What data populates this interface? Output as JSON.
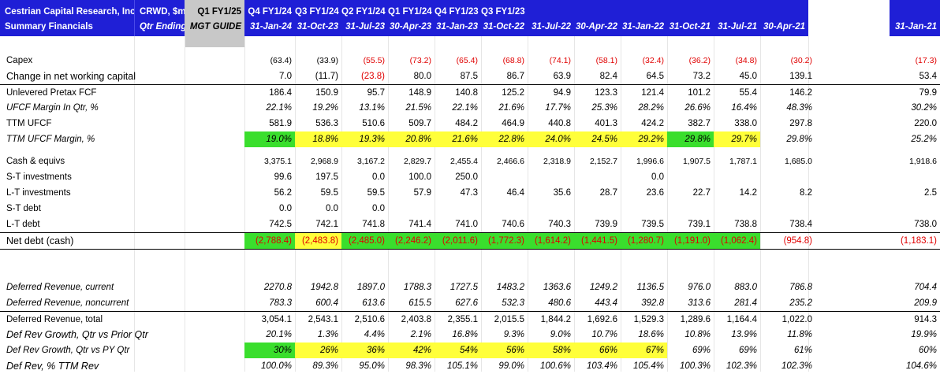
{
  "header": {
    "title_line1": "Cestrian Capital Research, Inc",
    "title_line2": "Summary Financials",
    "ticker_line1": "CRWD, $m",
    "ticker_line2": "Qtr Ending",
    "guide_line1": "Q1 FY1/25",
    "guide_line2": "MGT GUIDE",
    "periods": [
      {
        "q": "Q4 FY1/24",
        "d": "31-Jan-24"
      },
      {
        "q": "Q3 FY1/24",
        "d": "31-Oct-23"
      },
      {
        "q": "Q2 FY1/24",
        "d": "31-Jul-23"
      },
      {
        "q": "Q1 FY1/24",
        "d": "30-Apr-23"
      },
      {
        "q": "Q4 FY1/23",
        "d": "31-Jan-23"
      },
      {
        "q": "Q3 FY1/23",
        "d": "31-Oct-22"
      },
      {
        "q": "",
        "d": "31-Jul-22"
      },
      {
        "q": "",
        "d": "30-Apr-22"
      },
      {
        "q": "",
        "d": "31-Jan-22"
      },
      {
        "q": "",
        "d": "31-Oct-21"
      },
      {
        "q": "",
        "d": "31-Jul-21"
      },
      {
        "q": "",
        "d": "30-Apr-21"
      },
      {
        "q": "",
        "d": "31-Jan-21"
      }
    ]
  },
  "colors": {
    "header_bg": "#1f1fd6",
    "guide_bg": "#c8c8c8",
    "negative": "#e00000",
    "highlight_green": "#3ade2d",
    "highlight_yellow": "#ffff3a"
  },
  "rows": [
    {
      "key": "capex",
      "label": "Capex",
      "values": [
        "(63.4)",
        "(33.9)",
        "(55.5)",
        "(73.2)",
        "(65.4)",
        "(68.8)",
        "(74.1)",
        "(58.1)",
        "(32.4)",
        "(36.2)",
        "(34.8)",
        "(30.2)",
        "(17.3)"
      ],
      "neg": [
        false,
        false,
        true,
        true,
        true,
        true,
        true,
        true,
        true,
        true,
        true,
        true,
        true
      ]
    },
    {
      "key": "nwc",
      "label": "Change in net working capital",
      "values": [
        "7.0",
        "(11.7)",
        "(23.8)",
        "80.0",
        "87.5",
        "86.7",
        "63.9",
        "82.4",
        "64.5",
        "73.2",
        "45.0",
        "139.1",
        "53.4"
      ],
      "neg": [
        false,
        false,
        true,
        false,
        false,
        false,
        false,
        false,
        false,
        false,
        false,
        false,
        false
      ]
    },
    {
      "key": "ufcf",
      "label": "Unlevered Pretax FCF",
      "values": [
        "186.4",
        "150.9",
        "95.7",
        "148.9",
        "140.8",
        "125.2",
        "94.9",
        "123.3",
        "121.4",
        "101.2",
        "55.4",
        "146.2",
        "79.9"
      ]
    },
    {
      "key": "ufcf_margin",
      "label": "UFCF Margin In Qtr, %",
      "values": [
        "22.1%",
        "19.2%",
        "13.1%",
        "21.5%",
        "22.1%",
        "21.6%",
        "17.7%",
        "25.3%",
        "28.2%",
        "26.6%",
        "16.4%",
        "48.3%",
        "30.2%"
      ]
    },
    {
      "key": "ttm_ufcf",
      "label": "TTM UFCF",
      "values": [
        "581.9",
        "536.3",
        "510.6",
        "509.7",
        "484.2",
        "464.9",
        "440.8",
        "401.3",
        "424.2",
        "382.7",
        "338.0",
        "297.8",
        "220.0"
      ]
    },
    {
      "key": "ttm_margin",
      "label": "TTM UFCF Margin, %",
      "values": [
        "19.0%",
        "18.8%",
        "19.3%",
        "20.8%",
        "21.6%",
        "22.8%",
        "24.0%",
        "24.5%",
        "29.2%",
        "29.8%",
        "29.7%",
        "29.8%",
        "25.2%"
      ],
      "hl": [
        "g",
        "y",
        "y",
        "y",
        "y",
        "y",
        "y",
        "y",
        "y",
        "g",
        "y",
        "",
        ""
      ]
    },
    {
      "key": "cash",
      "label": "Cash & equivs",
      "values": [
        "3,375.1",
        "2,968.9",
        "3,167.2",
        "2,829.7",
        "2,455.4",
        "2,466.6",
        "2,318.9",
        "2,152.7",
        "1,996.6",
        "1,907.5",
        "1,787.1",
        "1,685.0",
        "1,918.6"
      ]
    },
    {
      "key": "st_inv",
      "label": "S-T investments",
      "values": [
        "99.6",
        "197.5",
        "0.0",
        "100.0",
        "250.0",
        "",
        "",
        "",
        "0.0",
        "",
        "",
        "",
        ""
      ]
    },
    {
      "key": "lt_inv",
      "label": "L-T investments",
      "values": [
        "56.2",
        "59.5",
        "59.5",
        "57.9",
        "47.3",
        "46.4",
        "35.6",
        "28.7",
        "23.6",
        "22.7",
        "14.2",
        "8.2",
        "2.5"
      ]
    },
    {
      "key": "st_debt",
      "label": "S-T debt",
      "values": [
        "0.0",
        "0.0",
        "0.0",
        "",
        "",
        "",
        "",
        "",
        "",
        "",
        "",
        "",
        ""
      ]
    },
    {
      "key": "lt_debt",
      "label": "L-T debt",
      "values": [
        "742.5",
        "742.1",
        "741.8",
        "741.4",
        "741.0",
        "740.6",
        "740.3",
        "739.9",
        "739.5",
        "739.1",
        "738.8",
        "738.4",
        "738.0"
      ]
    },
    {
      "key": "net_debt",
      "label": "Net debt (cash)",
      "values": [
        "(2,788.4)",
        "(2,483.8)",
        "(2,485.0)",
        "(2,246.2)",
        "(2,011.6)",
        "(1,772.3)",
        "(1,614.2)",
        "(1,441.5)",
        "(1,280.7)",
        "(1,191.0)",
        "(1,062.4)",
        "(954.8)",
        "(1,183.1)"
      ],
      "hl": [
        "g",
        "y",
        "g",
        "g",
        "g",
        "g",
        "g",
        "g",
        "g",
        "g",
        "g",
        "",
        ""
      ]
    },
    {
      "key": "def_cur",
      "label": "Deferred Revenue, current",
      "values": [
        "2270.8",
        "1942.8",
        "1897.0",
        "1788.3",
        "1727.5",
        "1483.2",
        "1363.6",
        "1249.2",
        "1136.5",
        "976.0",
        "883.0",
        "786.8",
        "704.4"
      ]
    },
    {
      "key": "def_noncur",
      "label": "Deferred Revenue, noncurrent",
      "values": [
        "783.3",
        "600.4",
        "613.6",
        "615.5",
        "627.6",
        "532.3",
        "480.6",
        "443.4",
        "392.8",
        "313.6",
        "281.4",
        "235.2",
        "209.9"
      ]
    },
    {
      "key": "def_total",
      "label": "Deferred Revenue, total",
      "values": [
        "3,054.1",
        "2,543.1",
        "2,510.6",
        "2,403.8",
        "2,355.1",
        "2,015.5",
        "1,844.2",
        "1,692.6",
        "1,529.3",
        "1,289.6",
        "1,164.4",
        "1,022.0",
        "914.3"
      ]
    },
    {
      "key": "def_growth_q",
      "label": "Def Rev Growth, Qtr vs Prior Qtr",
      "values": [
        "20.1%",
        "1.3%",
        "4.4%",
        "2.1%",
        "16.8%",
        "9.3%",
        "9.0%",
        "10.7%",
        "18.6%",
        "10.8%",
        "13.9%",
        "11.8%",
        "19.9%"
      ]
    },
    {
      "key": "def_growth_py",
      "label": "Def Rev Growth, Qtr vs PY Qtr",
      "values": [
        "30%",
        "26%",
        "36%",
        "42%",
        "54%",
        "56%",
        "58%",
        "66%",
        "67%",
        "69%",
        "69%",
        "61%",
        "60%"
      ],
      "hl": [
        "g",
        "y",
        "y",
        "y",
        "y",
        "y",
        "y",
        "y",
        "y",
        "",
        "",
        "",
        ""
      ]
    },
    {
      "key": "def_pct_ttm",
      "label": "Def Rev, % TTM Rev",
      "values": [
        "100.0%",
        "89.3%",
        "95.0%",
        "98.3%",
        "105.1%",
        "99.0%",
        "100.6%",
        "103.4%",
        "105.4%",
        "100.3%",
        "102.3%",
        "102.3%",
        "104.6%"
      ]
    }
  ]
}
